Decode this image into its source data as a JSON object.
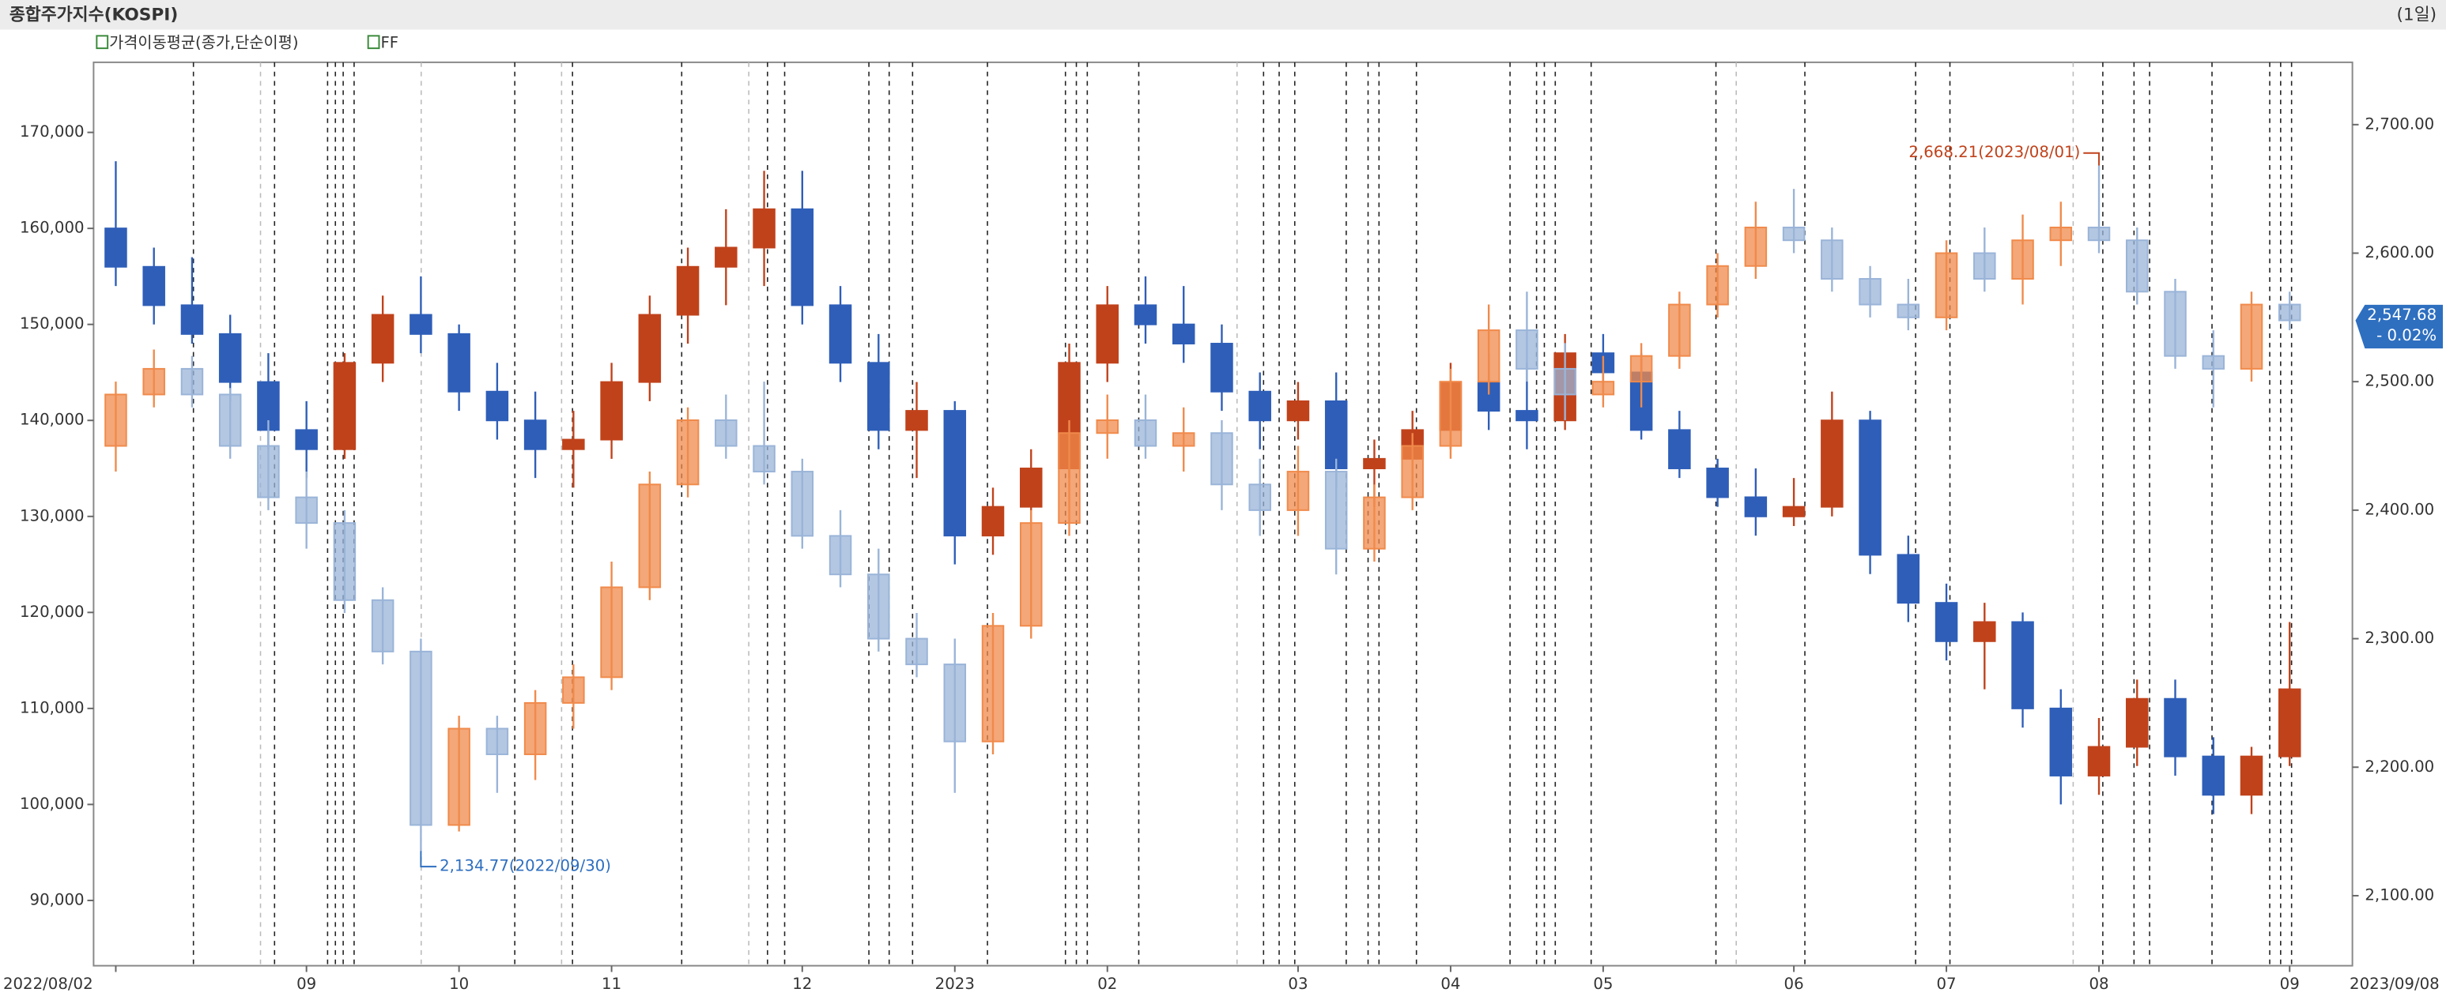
{
  "chart_data": {
    "type": "candlestick",
    "title": "종합주가지수(KOSPI)",
    "period": "(1일)",
    "legend_items": [
      "가격이동평균(종가,단순이평)",
      "FF"
    ],
    "categories": [
      "2022/08/02",
      null,
      null,
      null,
      null,
      "09",
      null,
      null,
      null,
      "10",
      null,
      null,
      null,
      "11",
      null,
      null,
      null,
      null,
      "12",
      null,
      null,
      null,
      "2023",
      null,
      null,
      null,
      "02",
      null,
      null,
      null,
      null,
      "03",
      null,
      null,
      null,
      "04",
      null,
      null,
      null,
      "05",
      null,
      null,
      null,
      null,
      "06",
      null,
      null,
      null,
      "07",
      null,
      null,
      null,
      "08",
      null,
      null,
      null,
      null,
      "09"
    ],
    "x_end_label": "2023/09/08",
    "ylim": [
      83200,
      177300
    ],
    "yticks": [
      {
        "value": 90000,
        "label": "90,000"
      },
      {
        "value": 100000,
        "label": "100,000"
      },
      {
        "value": 110000,
        "label": "110,000"
      },
      {
        "value": 120000,
        "label": "120,000"
      },
      {
        "value": 130000,
        "label": "130,000"
      },
      {
        "value": 140000,
        "label": "140,000"
      },
      {
        "value": 150000,
        "label": "150,000"
      },
      {
        "value": 160000,
        "label": "160,000"
      },
      {
        "value": 170000,
        "label": "170,000"
      }
    ],
    "y2lim": [
      2045.5,
      2748.5
    ],
    "y2ticks": [
      {
        "value": 2100,
        "label": "2,100.00"
      },
      {
        "value": 2200,
        "label": "2,200.00"
      },
      {
        "value": 2300,
        "label": "2,300.00"
      },
      {
        "value": 2400,
        "label": "2,400.00"
      },
      {
        "value": 2500,
        "label": "2,500.00"
      },
      {
        "value": 2600,
        "label": "2,600.00"
      },
      {
        "value": 2700,
        "label": "2,700.00"
      }
    ],
    "series": [
      {
        "axis": "y",
        "up_color": "#c0421b",
        "down_color": "#2e5eb8",
        "open": [
          160000,
          156000,
          152000,
          149000,
          144000,
          139000,
          137000,
          146000,
          151000,
          149000,
          143000,
          140000,
          137000,
          138000,
          144000,
          151000,
          156000,
          158000,
          162000,
          152000,
          146000,
          139000,
          141000,
          128000,
          131000,
          135000,
          146000,
          152000,
          150000,
          148000,
          143000,
          140000,
          142000,
          135000,
          136000,
          139000,
          144000,
          141000,
          140000,
          147000,
          145000,
          139000,
          135000,
          132000,
          130000,
          131000,
          140000,
          126000,
          121000,
          117000,
          119000,
          110000,
          103000,
          106000,
          111000,
          105000,
          101000,
          105000
        ],
        "high": [
          167000,
          158000,
          157000,
          151000,
          147000,
          142000,
          147000,
          153000,
          155000,
          150000,
          146000,
          143000,
          141000,
          146000,
          153000,
          158000,
          162000,
          166000,
          166000,
          154000,
          149000,
          144000,
          142000,
          133000,
          137000,
          148000,
          154000,
          155000,
          154000,
          150000,
          145000,
          144000,
          145000,
          138000,
          141000,
          146000,
          147000,
          146000,
          149000,
          149000,
          147000,
          141000,
          136000,
          135000,
          134000,
          143000,
          141000,
          128000,
          123000,
          121000,
          120000,
          112000,
          109000,
          113000,
          113000,
          107000,
          106000,
          119000
        ],
        "low": [
          154000,
          150000,
          148000,
          142000,
          137000,
          134000,
          136000,
          144000,
          147000,
          141000,
          138000,
          134000,
          133000,
          136000,
          142000,
          148000,
          152000,
          154000,
          150000,
          144000,
          137000,
          134000,
          125000,
          126000,
          129000,
          134000,
          144000,
          148000,
          146000,
          141000,
          137000,
          138000,
          133000,
          131000,
          134000,
          137000,
          139000,
          137000,
          139000,
          143000,
          138000,
          134000,
          131000,
          128000,
          129000,
          130000,
          124000,
          119000,
          115000,
          112000,
          108000,
          100000,
          101000,
          104000,
          103000,
          99000,
          99000,
          104000
        ],
        "close": [
          156000,
          152000,
          149000,
          144000,
          139000,
          137000,
          146000,
          151000,
          149000,
          143000,
          140000,
          137000,
          138000,
          144000,
          151000,
          156000,
          158000,
          162000,
          152000,
          146000,
          139000,
          141000,
          128000,
          131000,
          135000,
          146000,
          152000,
          150000,
          148000,
          143000,
          140000,
          142000,
          135000,
          136000,
          139000,
          144000,
          141000,
          140000,
          147000,
          145000,
          139000,
          135000,
          132000,
          130000,
          131000,
          140000,
          126000,
          121000,
          117000,
          119000,
          110000,
          103000,
          106000,
          111000,
          105000,
          101000,
          105000,
          112000
        ]
      },
      {
        "axis": "y2",
        "up_color": "#f08a4b",
        "down_color": "#9ab4d8",
        "open": [
          2450,
          2490,
          2510,
          2490,
          2450,
          2410,
          2390,
          2330,
          2290,
          2155,
          2230,
          2210,
          2250,
          2270,
          2340,
          2420,
          2470,
          2450,
          2430,
          2380,
          2350,
          2300,
          2280,
          2220,
          2310,
          2390,
          2460,
          2470,
          2450,
          2460,
          2420,
          2400,
          2430,
          2370,
          2410,
          2450,
          2500,
          2540,
          2510,
          2490,
          2500,
          2520,
          2560,
          2590,
          2620,
          2610,
          2580,
          2560,
          2550,
          2600,
          2580,
          2610,
          2620,
          2610,
          2570,
          2520,
          2510,
          2560
        ],
        "high": [
          2500,
          2525,
          2520,
          2495,
          2470,
          2430,
          2400,
          2340,
          2300,
          2240,
          2240,
          2260,
          2280,
          2360,
          2430,
          2480,
          2490,
          2500,
          2440,
          2400,
          2370,
          2320,
          2300,
          2320,
          2400,
          2470,
          2490,
          2490,
          2480,
          2470,
          2440,
          2450,
          2440,
          2420,
          2460,
          2510,
          2560,
          2570,
          2530,
          2520,
          2530,
          2570,
          2600,
          2640,
          2650,
          2620,
          2590,
          2580,
          2610,
          2620,
          2630,
          2640,
          2668.21,
          2620,
          2580,
          2540,
          2570,
          2570
        ],
        "low": [
          2430,
          2480,
          2480,
          2440,
          2400,
          2370,
          2320,
          2280,
          2134.77,
          2150,
          2180,
          2190,
          2230,
          2260,
          2330,
          2410,
          2440,
          2420,
          2370,
          2340,
          2290,
          2270,
          2180,
          2210,
          2300,
          2380,
          2440,
          2440,
          2430,
          2400,
          2380,
          2380,
          2350,
          2360,
          2400,
          2440,
          2490,
          2500,
          2470,
          2480,
          2480,
          2510,
          2550,
          2580,
          2600,
          2570,
          2550,
          2540,
          2540,
          2570,
          2560,
          2590,
          2600,
          2560,
          2510,
          2480,
          2500,
          2540
        ],
        "close": [
          2490,
          2510,
          2490,
          2450,
          2410,
          2390,
          2330,
          2290,
          2155,
          2230,
          2210,
          2250,
          2270,
          2340,
          2420,
          2470,
          2450,
          2430,
          2380,
          2350,
          2300,
          2280,
          2220,
          2310,
          2390,
          2460,
          2470,
          2450,
          2460,
          2420,
          2400,
          2430,
          2370,
          2410,
          2450,
          2500,
          2540,
          2510,
          2490,
          2500,
          2520,
          2560,
          2590,
          2620,
          2610,
          2580,
          2560,
          2550,
          2600,
          2580,
          2610,
          2620,
          2610,
          2570,
          2520,
          2510,
          2560,
          2547.68
        ]
      }
    ],
    "annotations": [
      "2,134.77(2022/09/30)",
      "2,668.21(2023/08/01)"
    ],
    "last_value_label": "2,547.68",
    "last_change_label": "- 0.02%"
  }
}
